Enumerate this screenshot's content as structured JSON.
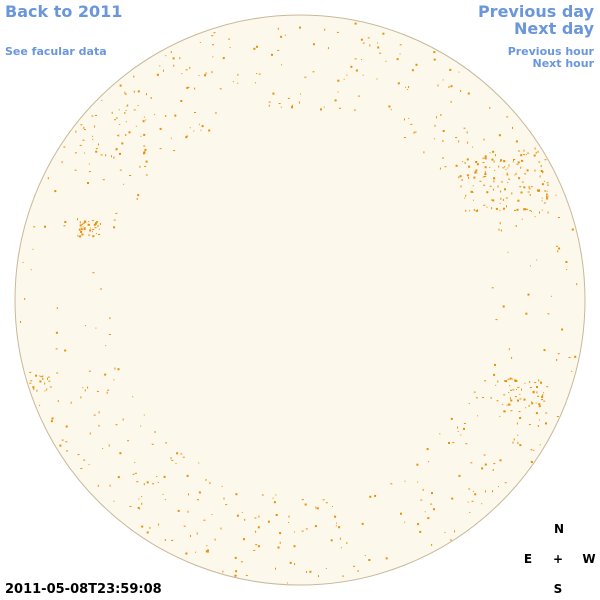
{
  "nav": {
    "back": "Back to 2011",
    "facular": "See facular data",
    "previous_day": "Previous day",
    "next_day": "Next day",
    "previous_hour": "Previous hour",
    "next_hour": "Next hour"
  },
  "timestamp": "2011-05-08T23:59:08",
  "compass": {
    "north": "N",
    "east": "E",
    "center": "+",
    "west": "W",
    "south": "S"
  }
}
